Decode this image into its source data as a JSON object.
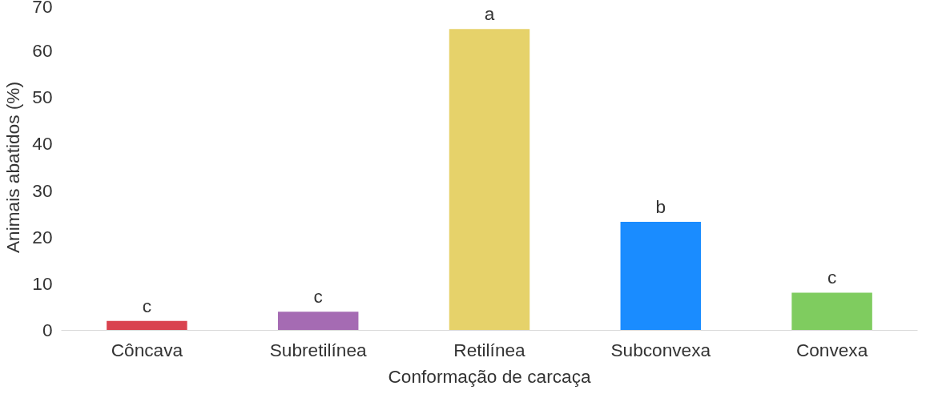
{
  "chart_data": {
    "type": "bar",
    "xlabel": "Conformação de carcaça",
    "ylabel": "Animais abatidos (%)",
    "categories": [
      "Côncava",
      "Subretilínea",
      "Retilínea",
      "Subconvexa",
      "Convexa"
    ],
    "values": [
      2.0,
      4.0,
      64.7,
      23.3,
      8.1
    ],
    "colors": [
      "#d9434f",
      "#a56bb3",
      "#e6d26a",
      "#1a8cff",
      "#7fcc5f"
    ],
    "ylim": [
      0,
      70
    ],
    "yticks": [
      0,
      10,
      20,
      30,
      40,
      50,
      60,
      70
    ],
    "grid": false,
    "annotations": [
      {
        "text": "c",
        "x": "Côncava",
        "y": 2.0
      },
      {
        "text": "c",
        "x": "Subretilínea",
        "y": 4.0
      },
      {
        "text": "a",
        "x": "Retilínea",
        "y": 64.7
      },
      {
        "text": "b",
        "x": "Subconvexa",
        "y": 23.3
      },
      {
        "text": "c",
        "x": "Convexa",
        "y": 8.1
      }
    ]
  }
}
